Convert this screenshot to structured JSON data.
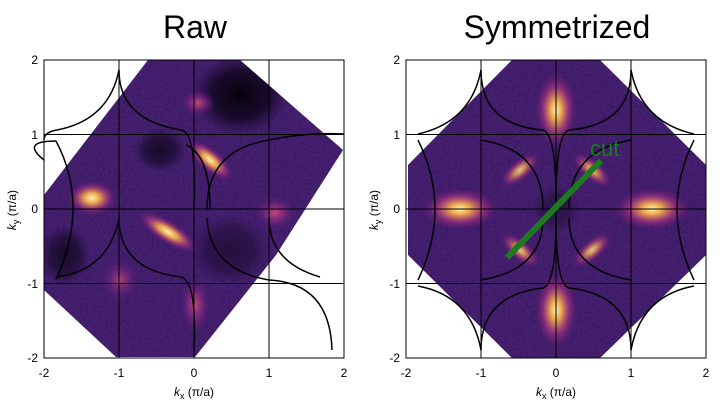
{
  "panels": [
    {
      "id": "raw",
      "title": "Raw",
      "x_ticks": [
        "-2",
        "-1",
        "0",
        "1",
        "2"
      ],
      "y_ticks": [
        "2",
        "1",
        "0",
        "-1",
        "-2"
      ],
      "x_label": {
        "k": "k",
        "sub": "x",
        "unit": " (π/a)"
      },
      "y_label": {
        "k": "k",
        "sub": "y",
        "unit": " (π/a)"
      },
      "range": [
        -2,
        2
      ]
    },
    {
      "id": "symmetrized",
      "title": "Symmetrized",
      "x_ticks": [
        "-2",
        "-1",
        "0",
        "1",
        "2"
      ],
      "y_ticks": [
        "2",
        "1",
        "0",
        "-1",
        "-2"
      ],
      "x_label": {
        "k": "k",
        "sub": "x",
        "unit": " (π/a)"
      },
      "y_label": {
        "k": "k",
        "sub": "y",
        "unit": " (π/a)"
      },
      "range": [
        -2,
        2
      ],
      "cut": {
        "label": "cut",
        "from": [
          -0.65,
          -0.65
        ],
        "to": [
          0.6,
          0.65
        ],
        "color": "#1e7a1e"
      }
    }
  ],
  "colors": {
    "background_map": "#2a0f4e",
    "hot": "#f7e79a",
    "mid": "#b03a86",
    "line": "#000000"
  }
}
